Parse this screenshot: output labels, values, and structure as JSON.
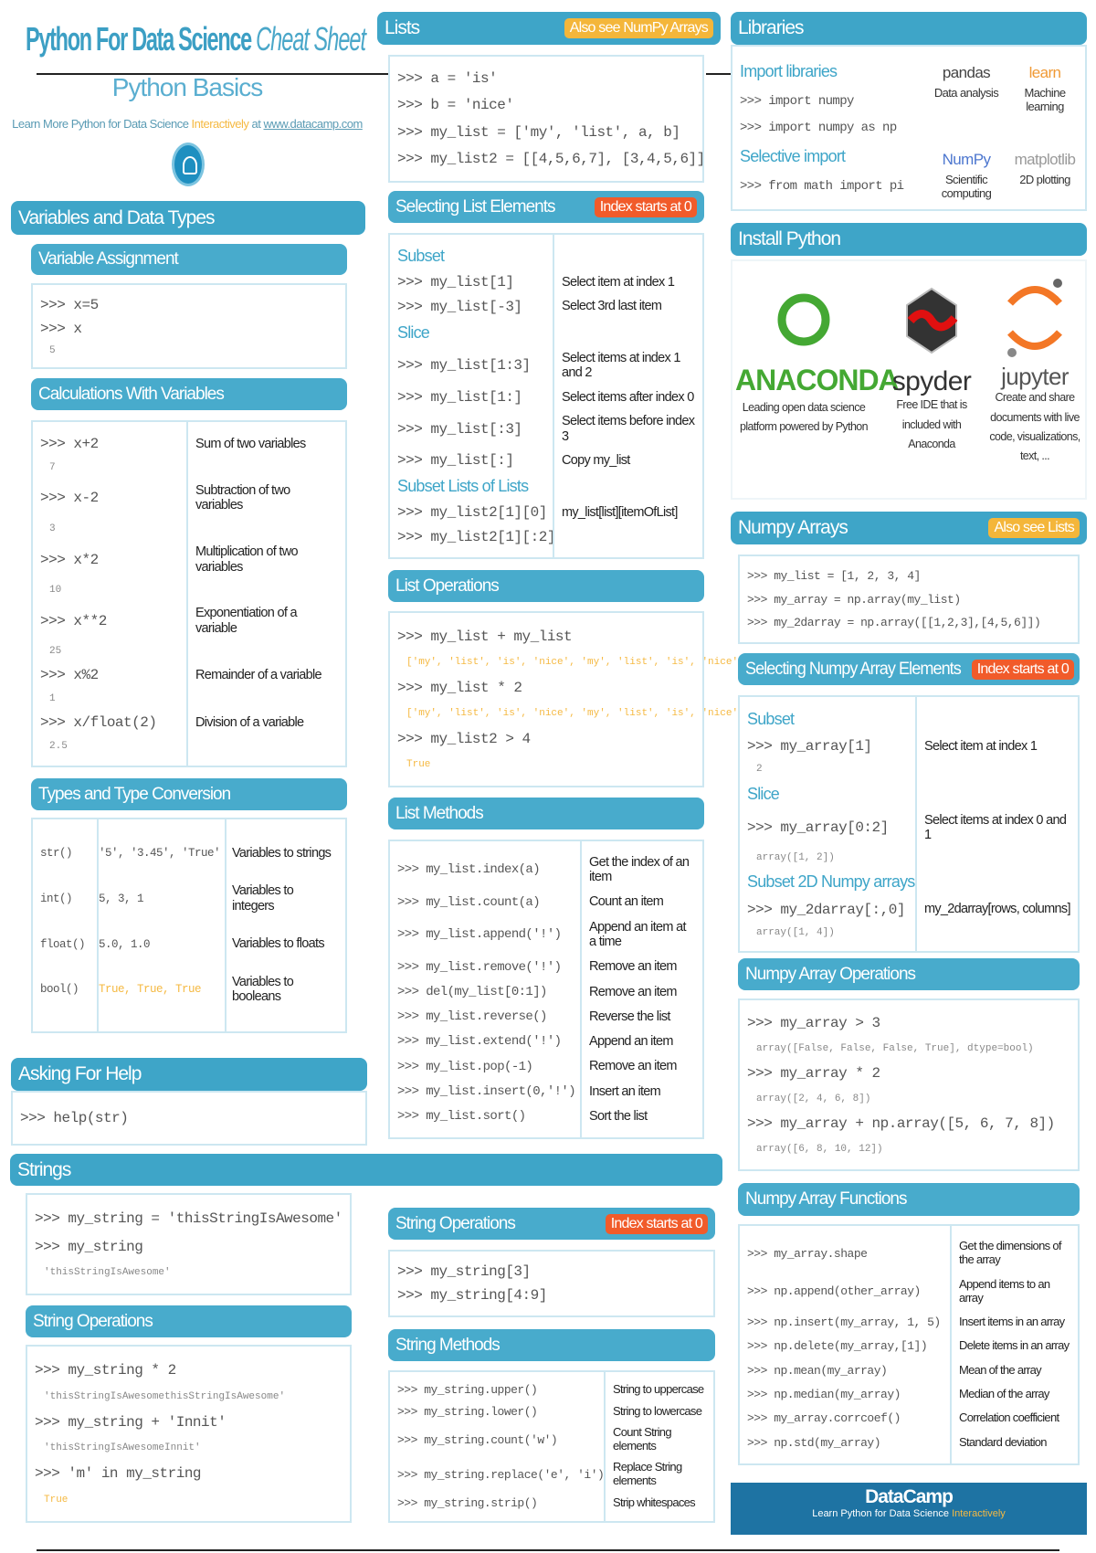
{
  "header": {
    "title_bold": "Python For Data Science",
    "title_italic": "Cheat Sheet",
    "subtitle": "Python Basics",
    "learn_prefix": "Learn More Python for Data Science ",
    "learn_highlight": "Interactively",
    "learn_mid": " at ",
    "learn_link": "www.datacamp.com"
  },
  "colors": {
    "header": "#3ea5c8",
    "badge_yellow": "#f4b63a",
    "badge_red": "#f15b2a",
    "footer": "#1e73a3",
    "highlight": "#f5b942"
  },
  "variables": {
    "title": "Variables and Data Types",
    "assign": {
      "title": "Variable Assignment",
      "rows": [
        {
          "code": ">>> x=5"
        },
        {
          "code": ">>> x"
        },
        {
          "out": "5"
        }
      ]
    },
    "calc": {
      "title": "Calculations With Variables",
      "rows": [
        {
          "code": ">>> x+2",
          "desc": "Sum of two variables"
        },
        {
          "out": "7"
        },
        {
          "code": ">>> x-2",
          "desc": "Subtraction of two variables"
        },
        {
          "out": "3"
        },
        {
          "code": ">>> x*2",
          "desc": "Multiplication of two variables"
        },
        {
          "out": "10"
        },
        {
          "code": ">>> x**2",
          "desc": "Exponentiation of a variable"
        },
        {
          "out": "25"
        },
        {
          "code": ">>> x%2",
          "desc": "Remainder of a variable"
        },
        {
          "out": "1"
        },
        {
          "code": ">>> x/float(2)",
          "desc": "Division of a variable"
        },
        {
          "out": "2.5"
        }
      ]
    },
    "types": {
      "title": "Types and Type Conversion",
      "rows": [
        {
          "cells": [
            "str()",
            "'5', '3.45', 'True'",
            "Variables to strings"
          ]
        },
        {
          "cells": [
            "int()",
            "5, 3, 1",
            "Variables to integers"
          ]
        },
        {
          "cells": [
            "float()",
            "5.0, 1.0",
            "Variables to floats"
          ]
        },
        {
          "cells": [
            "bool()",
            "True, True, True",
            "Variables to booleans"
          ],
          "hl": true
        }
      ]
    }
  },
  "help": {
    "title": "Asking For Help",
    "rows": [
      {
        "code": ">>> help(str)"
      }
    ]
  },
  "strings": {
    "title": "Strings",
    "main": {
      "rows": [
        {
          "code": ">>> my_string = 'thisStringIsAwesome'"
        },
        {
          "code": ">>> my_string"
        },
        {
          "out": "'thisStringIsAwesome'"
        }
      ]
    },
    "ops_left": {
      "title": "String Operations",
      "rows": [
        {
          "code": ">>> my_string * 2"
        },
        {
          "out": "'thisStringIsAwesomethisStringIsAwesome'"
        },
        {
          "code": ">>> my_string + 'Innit'"
        },
        {
          "out": "'thisStringIsAwesomeInnit'"
        },
        {
          "code": ">>> 'm' in my_string"
        },
        {
          "out": "True",
          "hl": true
        }
      ]
    },
    "ops_mid": {
      "title": "String Operations",
      "badge": "Index starts at 0",
      "rows": [
        {
          "code": ">>> my_string[3]"
        },
        {
          "code": ">>> my_string[4:9]"
        }
      ]
    },
    "methods": {
      "title": "String Methods",
      "rows": [
        {
          "code": ">>> my_string.upper()",
          "desc": "String to uppercase"
        },
        {
          "code": ">>> my_string.lower()",
          "desc": "String to lowercase"
        },
        {
          "code": ">>> my_string.count('w')",
          "desc": "Count String elements"
        },
        {
          "code": ">>> my_string.replace('e', 'i')",
          "desc": "Replace String elements"
        },
        {
          "code": ">>> my_string.strip()",
          "desc": "Strip whitespaces"
        }
      ]
    }
  },
  "lists": {
    "title": "Lists",
    "badge": "Also see NumPy Arrays",
    "rows": [
      {
        "code": ">>> a = 'is'"
      },
      {
        "code": ">>> b = 'nice'"
      },
      {
        "code": ">>> my_list = ['my', 'list', a, b]"
      },
      {
        "code": ">>> my_list2 = [[4,5,6,7], [3,4,5,6]]"
      }
    ],
    "select": {
      "title": "Selecting List Elements",
      "badge": "Index starts at 0",
      "rows": [
        {
          "sub": "Subset"
        },
        {
          "code": ">>> my_list[1]",
          "desc": "Select item at index 1"
        },
        {
          "code": ">>> my_list[-3]",
          "desc": "Select 3rd last item"
        },
        {
          "sub": "Slice"
        },
        {
          "code": ">>> my_list[1:3]",
          "desc": "Select items at index 1 and 2"
        },
        {
          "code": ">>> my_list[1:]",
          "desc": "Select items after index 0"
        },
        {
          "code": ">>> my_list[:3]",
          "desc": "Select items before index 3"
        },
        {
          "code": ">>> my_list[:]",
          "desc": "Copy my_list"
        },
        {
          "sub": "Subset Lists of Lists"
        },
        {
          "code": ">>> my_list2[1][0]",
          "desc": "my_list[list][itemOfList]"
        },
        {
          "code": ">>> my_list2[1][:2]"
        }
      ]
    },
    "ops": {
      "title": "List Operations",
      "rows": [
        {
          "code": ">>> my_list + my_list"
        },
        {
          "out": "['my', 'list', 'is', 'nice', 'my', 'list', 'is', 'nice']",
          "hl": true
        },
        {
          "code": ">>> my_list * 2"
        },
        {
          "out": "['my', 'list', 'is', 'nice', 'my', 'list', 'is', 'nice']",
          "hl": true
        },
        {
          "code": ">>> my_list2 > 4"
        },
        {
          "out": "True",
          "hl": true
        }
      ]
    },
    "methods": {
      "title": "List Methods",
      "rows": [
        {
          "code": ">>> my_list.index(a)",
          "desc": "Get the index of an item"
        },
        {
          "code": ">>> my_list.count(a)",
          "desc": "Count an item"
        },
        {
          "code": ">>> my_list.append('!')",
          "desc": "Append an item at a time"
        },
        {
          "code": ">>> my_list.remove('!')",
          "desc": "Remove an item"
        },
        {
          "code": ">>> del(my_list[0:1])",
          "desc": "Remove an item"
        },
        {
          "code": ">>> my_list.reverse()",
          "desc": "Reverse the list"
        },
        {
          "code": ">>> my_list.extend('!')",
          "desc": "Append an item"
        },
        {
          "code": ">>> my_list.pop(-1)",
          "desc": "Remove an item"
        },
        {
          "code": ">>> my_list.insert(0,'!')",
          "desc": "Insert an item"
        },
        {
          "code": ">>> my_list.sort()",
          "desc": "Sort the list"
        }
      ]
    }
  },
  "libraries": {
    "title": "Libraries",
    "rows": [
      {
        "sub": "Import libraries"
      },
      {
        "code": ">>> import numpy"
      },
      {
        "code": ">>> import numpy as np"
      },
      {
        "sub": "Selective import"
      },
      {
        "code": ">>> from math import pi"
      }
    ],
    "logos": [
      {
        "name": "pandas",
        "caption": "Data analysis"
      },
      {
        "name": "learn",
        "caption": "Machine learning"
      },
      {
        "name": "NumPy",
        "caption": "Scientific computing"
      },
      {
        "name": "matplotlib",
        "caption": "2D plotting"
      }
    ]
  },
  "install": {
    "title": "Install Python",
    "items": [
      {
        "name": "ANACONDA",
        "caption": "Leading open data science platform powered by Python"
      },
      {
        "name": "spyder",
        "caption": "Free IDE that is included with Anaconda"
      },
      {
        "name": "jupyter",
        "caption": "Create and share documents with live code, visualizations, text, ..."
      }
    ]
  },
  "numpy": {
    "title": "Numpy Arrays",
    "badge": "Also see Lists",
    "rows": [
      {
        "code": ">>> my_list = [1, 2, 3, 4]"
      },
      {
        "code": ">>> my_array = np.array(my_list)"
      },
      {
        "code": ">>> my_2darray = np.array([[1,2,3],[4,5,6]])"
      }
    ],
    "select": {
      "title": "Selecting Numpy Array Elements",
      "badge": "Index starts at 0",
      "rows": [
        {
          "sub": "Subset"
        },
        {
          "code": ">>> my_array[1]",
          "desc": "Select item at index 1"
        },
        {
          "out": "2"
        },
        {
          "sub": "Slice"
        },
        {
          "code": ">>> my_array[0:2]",
          "desc": "Select items at index 0 and 1"
        },
        {
          "out": "array([1, 2])"
        },
        {
          "sub": "Subset 2D Numpy arrays"
        },
        {
          "code": ">>> my_2darray[:,0]",
          "desc": "my_2darray[rows, columns]"
        },
        {
          "out": "array([1, 4])"
        }
      ]
    },
    "ops": {
      "title": "Numpy Array Operations",
      "rows": [
        {
          "code": ">>> my_array > 3"
        },
        {
          "out": "array([False, False, False,  True], dtype=bool)"
        },
        {
          "code": ">>> my_array * 2"
        },
        {
          "out": "array([2, 4, 6, 8])"
        },
        {
          "code": ">>> my_array + np.array([5, 6, 7, 8])"
        },
        {
          "out": "array([6, 8, 10, 12])"
        }
      ]
    },
    "funcs": {
      "title": "Numpy Array Functions",
      "rows": [
        {
          "code": ">>> my_array.shape",
          "desc": "Get the dimensions of the array"
        },
        {
          "code": ">>> np.append(other_array)",
          "desc": "Append items to an array"
        },
        {
          "code": ">>> np.insert(my_array, 1, 5)",
          "desc": "Insert items in an array"
        },
        {
          "code": ">>> np.delete(my_array,[1])",
          "desc": "Delete items in an array"
        },
        {
          "code": ">>> np.mean(my_array)",
          "desc": "Mean of the array"
        },
        {
          "code": ">>> np.median(my_array)",
          "desc": "Median of the array"
        },
        {
          "code": ">>> my_array.corrcoef()",
          "desc": "Correlation coefficient"
        },
        {
          "code": ">>> np.std(my_array)",
          "desc": "Standard deviation"
        }
      ]
    }
  },
  "footer": {
    "brand": "DataCamp",
    "tagline_prefix": "Learn Python for Data Science ",
    "tagline_highlight": "Interactively"
  }
}
